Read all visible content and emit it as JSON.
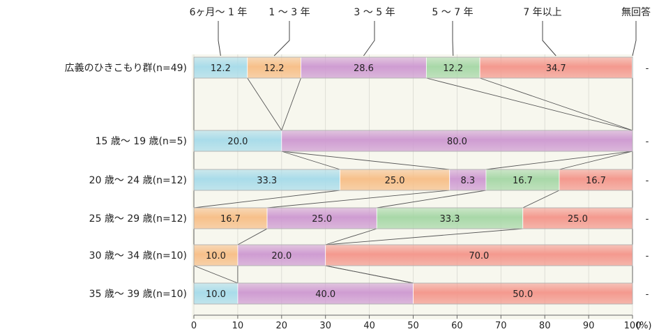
{
  "chart_data": {
    "type": "bar",
    "stacked": true,
    "orientation": "horizontal",
    "legend_position": "top",
    "xlim": [
      0,
      100
    ],
    "x_ticks": [
      "0",
      "10",
      "20",
      "30",
      "40",
      "50",
      "60",
      "70",
      "80",
      "90",
      "100"
    ],
    "x_unit": "(%)",
    "categories": [
      "広義のひきこもり群(n=49)",
      "15 歳～ 19 歳(n=5)",
      "20 歳～ 24 歳(n=12)",
      "25 歳～ 29 歳(n=12)",
      "30 歳～ 34 歳(n=10)",
      "35 歳～ 39 歳(n=10)"
    ],
    "series": [
      {
        "name": "6ヶ月～ 1 年",
        "color": "#a9dcea",
        "values": [
          12.2,
          20.0,
          33.3,
          0,
          0,
          10.0
        ]
      },
      {
        "name": "1 ～ 3 年",
        "color": "#f7c08a",
        "values": [
          12.2,
          0,
          25.0,
          16.7,
          10.0,
          0
        ]
      },
      {
        "name": "3 ～ 5 年",
        "color": "#cf9cd2",
        "values": [
          28.6,
          80.0,
          8.3,
          25.0,
          20.0,
          40.0
        ]
      },
      {
        "name": "5 ～ 7 年",
        "color": "#a8d8a8",
        "values": [
          12.2,
          0,
          16.7,
          33.3,
          0,
          0
        ]
      },
      {
        "name": "7 年以上",
        "color": "#f4998e",
        "values": [
          34.7,
          0,
          16.7,
          25.0,
          70.0,
          50.0
        ]
      },
      {
        "name": "無回答",
        "color": "#ffffff",
        "values": [
          0,
          0,
          0,
          0,
          0,
          0
        ]
      }
    ],
    "value_labels": [
      [
        "12.2",
        "12.2",
        "28.6",
        "12.2",
        "34.7",
        ""
      ],
      [
        "20.0",
        "",
        "80.0",
        "",
        "",
        ""
      ],
      [
        "33.3",
        "25.0",
        "8.3",
        "16.7",
        "16.7",
        ""
      ],
      [
        "",
        "16.7",
        "25.0",
        "33.3",
        "25.0",
        ""
      ],
      [
        "",
        "10.0",
        "20.0",
        "",
        "70.0",
        ""
      ],
      [
        "10.0",
        "",
        "40.0",
        "",
        "50.0",
        ""
      ]
    ],
    "no_answer_labels": [
      "-",
      "-",
      "-",
      "-",
      "-",
      "-"
    ]
  }
}
